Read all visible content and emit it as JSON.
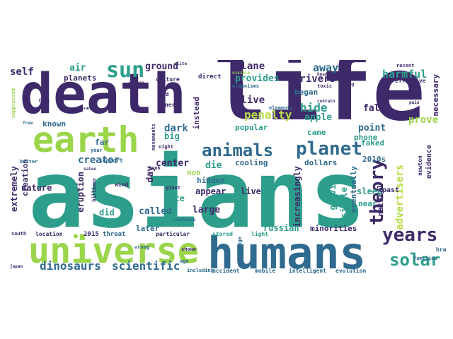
{
  "colors": {
    "background": "#ffffff",
    "purple": "#3e2a6a",
    "teal": "#2e9e8c",
    "green": "#9ad54a",
    "blue": "#2f6a8f",
    "lightgreen": "#b9de4a"
  },
  "words": [
    "asians",
    "life",
    "death",
    "humans",
    "universe",
    "earth",
    "planet",
    "animals",
    "years",
    "sun",
    "theory",
    "solar",
    "penalty",
    "dinosaurs",
    "scientific",
    "creator",
    "harmful",
    "advertisers",
    "plane",
    "hide",
    "provides",
    "away",
    "self",
    "air",
    "ground",
    "drivers",
    "alive",
    "apple",
    "prove",
    "dark",
    "point",
    "fall",
    "instead",
    "popular",
    "center",
    "die",
    "cooling",
    "dollars",
    "2010s",
    "gravity",
    "increasingly",
    "single",
    "eventually",
    "eruption",
    "extremely",
    "creation",
    "nature",
    "called",
    "face",
    "hidden",
    "appear",
    "day",
    "large",
    "did",
    "later",
    "live",
    "russian",
    "minorities",
    "sleep",
    "near",
    "necessary",
    "natural",
    "faked",
    "came",
    "phone",
    "known",
    "far",
    "big",
    "planets",
    "began",
    "non",
    "evidence",
    "past",
    "2015",
    "threat",
    "particular",
    "location",
    "stored",
    "light",
    "accident",
    "mobile",
    "intelligent",
    "evolution",
    "brain",
    "families",
    "including",
    "ago",
    "effective",
    "recent",
    "toxic",
    "pain",
    "newton",
    "bad",
    "energy",
    "culture",
    "elite",
    "direct",
    "organisms",
    "elements",
    "year",
    "support",
    "better",
    "free",
    "fact",
    "suppressed",
    "wind",
    "giant",
    "sales",
    "billions",
    "took",
    "creatures",
    "escape",
    "japan",
    "south",
    "damage",
    "visible",
    "shown",
    "wrong",
    "kind",
    "advances",
    "night",
    "movements",
    "head",
    "contain",
    "long"
  ]
}
